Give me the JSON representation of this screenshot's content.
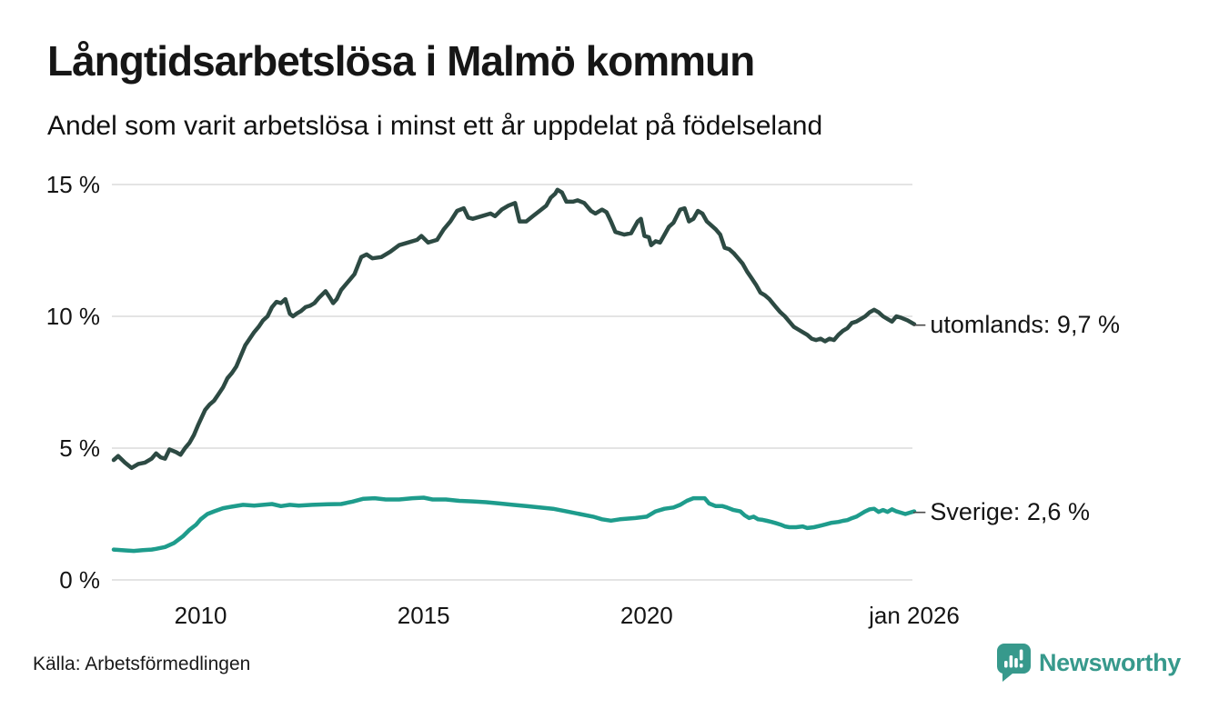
{
  "header": {
    "title": "Långtidsarbetslösa i Malmö kommun",
    "subtitle": "Andel som varit arbetslösa i minst ett år uppdelat på födelseland"
  },
  "footer": {
    "source": "Källa: Arbetsförmedlingen",
    "brand": "Newsworthy",
    "brand_icon": "bar-chart-speech-bubble-icon"
  },
  "colors": {
    "utomlands": "#2d4a43",
    "sverige": "#1e9c8c",
    "grid": "#dcdcdc",
    "text": "#1a1a1a",
    "brand": "#37998c",
    "end_dash": "#4a4a4a"
  },
  "chart_data": {
    "type": "line",
    "title": "Långtidsarbetslösa i Malmö kommun",
    "subtitle": "Andel som varit arbetslösa i minst ett år uppdelat på födelseland",
    "grid": true,
    "legend_position": "right-end-labels",
    "end_dash": "–",
    "x_axis": {
      "range": [
        2008.05,
        2026.0
      ],
      "ticks": [
        {
          "year": 2010,
          "label": "2010"
        },
        {
          "year": 2015,
          "label": "2015"
        },
        {
          "year": 2020,
          "label": "2020"
        },
        {
          "year": 2026,
          "label": "jan 2026"
        }
      ]
    },
    "y_axis": {
      "range": [
        0,
        15
      ],
      "unit": "%",
      "ticks": [
        {
          "value": 0,
          "label": "0 %"
        },
        {
          "value": 5,
          "label": "5 %"
        },
        {
          "value": 10,
          "label": "10 %"
        },
        {
          "value": 15,
          "label": "15 %"
        }
      ]
    },
    "series": [
      {
        "name": "utomlands",
        "label": "utomlands: 9,7 %",
        "last_value": 9.7,
        "color": "#2d4a43",
        "points": [
          [
            2008.05,
            4.55
          ],
          [
            2008.15,
            4.7
          ],
          [
            2008.3,
            4.45
          ],
          [
            2008.45,
            4.25
          ],
          [
            2008.6,
            4.4
          ],
          [
            2008.75,
            4.45
          ],
          [
            2008.9,
            4.6
          ],
          [
            2009.0,
            4.8
          ],
          [
            2009.1,
            4.65
          ],
          [
            2009.2,
            4.6
          ],
          [
            2009.3,
            4.95
          ],
          [
            2009.45,
            4.85
          ],
          [
            2009.55,
            4.75
          ],
          [
            2009.65,
            5.0
          ],
          [
            2009.75,
            5.2
          ],
          [
            2009.85,
            5.5
          ],
          [
            2009.95,
            5.9
          ],
          [
            2010.1,
            6.45
          ],
          [
            2010.2,
            6.65
          ],
          [
            2010.3,
            6.8
          ],
          [
            2010.4,
            7.05
          ],
          [
            2010.5,
            7.3
          ],
          [
            2010.6,
            7.65
          ],
          [
            2010.7,
            7.85
          ],
          [
            2010.8,
            8.1
          ],
          [
            2010.9,
            8.5
          ],
          [
            2011.0,
            8.9
          ],
          [
            2011.1,
            9.15
          ],
          [
            2011.2,
            9.4
          ],
          [
            2011.3,
            9.6
          ],
          [
            2011.4,
            9.85
          ],
          [
            2011.5,
            10.0
          ],
          [
            2011.6,
            10.35
          ],
          [
            2011.7,
            10.55
          ],
          [
            2011.8,
            10.5
          ],
          [
            2011.9,
            10.65
          ],
          [
            2012.0,
            10.1
          ],
          [
            2012.07,
            10.0
          ],
          [
            2012.15,
            10.1
          ],
          [
            2012.25,
            10.2
          ],
          [
            2012.35,
            10.35
          ],
          [
            2012.45,
            10.4
          ],
          [
            2012.55,
            10.5
          ],
          [
            2012.65,
            10.7
          ],
          [
            2012.8,
            10.95
          ],
          [
            2012.9,
            10.7
          ],
          [
            2012.97,
            10.5
          ],
          [
            2013.05,
            10.65
          ],
          [
            2013.15,
            11.0
          ],
          [
            2013.25,
            11.2
          ],
          [
            2013.35,
            11.4
          ],
          [
            2013.45,
            11.6
          ],
          [
            2013.6,
            12.25
          ],
          [
            2013.72,
            12.35
          ],
          [
            2013.85,
            12.2
          ],
          [
            2014.05,
            12.25
          ],
          [
            2014.25,
            12.45
          ],
          [
            2014.45,
            12.7
          ],
          [
            2014.65,
            12.8
          ],
          [
            2014.85,
            12.9
          ],
          [
            2014.95,
            13.05
          ],
          [
            2015.1,
            12.8
          ],
          [
            2015.3,
            12.9
          ],
          [
            2015.45,
            13.3
          ],
          [
            2015.6,
            13.6
          ],
          [
            2015.75,
            14.0
          ],
          [
            2015.9,
            14.1
          ],
          [
            2016.0,
            13.75
          ],
          [
            2016.1,
            13.7
          ],
          [
            2016.3,
            13.8
          ],
          [
            2016.5,
            13.9
          ],
          [
            2016.6,
            13.8
          ],
          [
            2016.75,
            14.05
          ],
          [
            2016.9,
            14.2
          ],
          [
            2017.05,
            14.3
          ],
          [
            2017.15,
            13.6
          ],
          [
            2017.3,
            13.6
          ],
          [
            2017.45,
            13.8
          ],
          [
            2017.6,
            14.0
          ],
          [
            2017.75,
            14.2
          ],
          [
            2017.85,
            14.5
          ],
          [
            2017.95,
            14.65
          ],
          [
            2018.0,
            14.8
          ],
          [
            2018.1,
            14.7
          ],
          [
            2018.2,
            14.35
          ],
          [
            2018.35,
            14.35
          ],
          [
            2018.45,
            14.4
          ],
          [
            2018.6,
            14.3
          ],
          [
            2018.75,
            14.0
          ],
          [
            2018.85,
            13.9
          ],
          [
            2019.0,
            14.05
          ],
          [
            2019.1,
            13.95
          ],
          [
            2019.2,
            13.6
          ],
          [
            2019.3,
            13.2
          ],
          [
            2019.5,
            13.1
          ],
          [
            2019.65,
            13.15
          ],
          [
            2019.8,
            13.6
          ],
          [
            2019.87,
            13.7
          ],
          [
            2019.95,
            13.05
          ],
          [
            2020.05,
            13.0
          ],
          [
            2020.1,
            12.7
          ],
          [
            2020.2,
            12.85
          ],
          [
            2020.3,
            12.8
          ],
          [
            2020.4,
            13.1
          ],
          [
            2020.5,
            13.4
          ],
          [
            2020.6,
            13.55
          ],
          [
            2020.75,
            14.05
          ],
          [
            2020.85,
            14.1
          ],
          [
            2020.95,
            13.6
          ],
          [
            2021.05,
            13.7
          ],
          [
            2021.15,
            14.0
          ],
          [
            2021.25,
            13.9
          ],
          [
            2021.35,
            13.6
          ],
          [
            2021.45,
            13.45
          ],
          [
            2021.55,
            13.3
          ],
          [
            2021.65,
            13.1
          ],
          [
            2021.75,
            12.6
          ],
          [
            2021.85,
            12.55
          ],
          [
            2021.95,
            12.4
          ],
          [
            2022.05,
            12.2
          ],
          [
            2022.15,
            12.0
          ],
          [
            2022.25,
            11.7
          ],
          [
            2022.35,
            11.45
          ],
          [
            2022.45,
            11.2
          ],
          [
            2022.55,
            10.9
          ],
          [
            2022.65,
            10.8
          ],
          [
            2022.75,
            10.65
          ],
          [
            2022.9,
            10.35
          ],
          [
            2023.0,
            10.15
          ],
          [
            2023.1,
            10.0
          ],
          [
            2023.2,
            9.8
          ],
          [
            2023.3,
            9.6
          ],
          [
            2023.4,
            9.5
          ],
          [
            2023.5,
            9.4
          ],
          [
            2023.6,
            9.3
          ],
          [
            2023.7,
            9.15
          ],
          [
            2023.8,
            9.1
          ],
          [
            2023.9,
            9.15
          ],
          [
            2024.0,
            9.05
          ],
          [
            2024.1,
            9.15
          ],
          [
            2024.2,
            9.1
          ],
          [
            2024.3,
            9.3
          ],
          [
            2024.4,
            9.45
          ],
          [
            2024.5,
            9.55
          ],
          [
            2024.6,
            9.75
          ],
          [
            2024.7,
            9.8
          ],
          [
            2024.8,
            9.9
          ],
          [
            2024.9,
            10.0
          ],
          [
            2025.0,
            10.15
          ],
          [
            2025.1,
            10.25
          ],
          [
            2025.2,
            10.15
          ],
          [
            2025.3,
            10.0
          ],
          [
            2025.4,
            9.9
          ],
          [
            2025.5,
            9.8
          ],
          [
            2025.6,
            10.0
          ],
          [
            2025.7,
            9.95
          ],
          [
            2025.85,
            9.85
          ],
          [
            2026.0,
            9.7
          ]
        ]
      },
      {
        "name": "sverige",
        "label": "Sverige: 2,6 %",
        "last_value": 2.6,
        "color": "#1e9c8c",
        "points": [
          [
            2008.05,
            1.15
          ],
          [
            2008.3,
            1.12
          ],
          [
            2008.5,
            1.1
          ],
          [
            2008.7,
            1.13
          ],
          [
            2008.9,
            1.15
          ],
          [
            2009.0,
            1.18
          ],
          [
            2009.2,
            1.25
          ],
          [
            2009.4,
            1.4
          ],
          [
            2009.6,
            1.65
          ],
          [
            2009.75,
            1.9
          ],
          [
            2009.9,
            2.1
          ],
          [
            2010.0,
            2.3
          ],
          [
            2010.15,
            2.5
          ],
          [
            2010.3,
            2.6
          ],
          [
            2010.5,
            2.72
          ],
          [
            2010.7,
            2.78
          ],
          [
            2010.95,
            2.85
          ],
          [
            2011.2,
            2.82
          ],
          [
            2011.4,
            2.85
          ],
          [
            2011.6,
            2.88
          ],
          [
            2011.8,
            2.8
          ],
          [
            2012.0,
            2.85
          ],
          [
            2012.2,
            2.82
          ],
          [
            2012.5,
            2.85
          ],
          [
            2012.85,
            2.87
          ],
          [
            2013.15,
            2.88
          ],
          [
            2013.4,
            2.97
          ],
          [
            2013.65,
            3.08
          ],
          [
            2013.9,
            3.1
          ],
          [
            2014.15,
            3.05
          ],
          [
            2014.45,
            3.05
          ],
          [
            2014.75,
            3.1
          ],
          [
            2015.0,
            3.12
          ],
          [
            2015.2,
            3.05
          ],
          [
            2015.5,
            3.05
          ],
          [
            2015.8,
            3.0
          ],
          [
            2016.1,
            2.98
          ],
          [
            2016.4,
            2.95
          ],
          [
            2016.7,
            2.9
          ],
          [
            2017.0,
            2.85
          ],
          [
            2017.3,
            2.8
          ],
          [
            2017.6,
            2.75
          ],
          [
            2017.9,
            2.7
          ],
          [
            2018.2,
            2.6
          ],
          [
            2018.5,
            2.5
          ],
          [
            2018.8,
            2.4
          ],
          [
            2019.0,
            2.3
          ],
          [
            2019.2,
            2.25
          ],
          [
            2019.4,
            2.3
          ],
          [
            2019.75,
            2.35
          ],
          [
            2020.0,
            2.4
          ],
          [
            2020.2,
            2.6
          ],
          [
            2020.4,
            2.7
          ],
          [
            2020.6,
            2.75
          ],
          [
            2020.75,
            2.85
          ],
          [
            2020.9,
            3.0
          ],
          [
            2021.05,
            3.1
          ],
          [
            2021.3,
            3.1
          ],
          [
            2021.4,
            2.9
          ],
          [
            2021.55,
            2.8
          ],
          [
            2021.7,
            2.8
          ],
          [
            2021.8,
            2.75
          ],
          [
            2021.95,
            2.65
          ],
          [
            2022.1,
            2.6
          ],
          [
            2022.2,
            2.45
          ],
          [
            2022.3,
            2.35
          ],
          [
            2022.4,
            2.4
          ],
          [
            2022.5,
            2.3
          ],
          [
            2022.6,
            2.28
          ],
          [
            2022.7,
            2.24
          ],
          [
            2022.8,
            2.2
          ],
          [
            2022.9,
            2.15
          ],
          [
            2023.0,
            2.1
          ],
          [
            2023.1,
            2.03
          ],
          [
            2023.2,
            2.0
          ],
          [
            2023.35,
            2.0
          ],
          [
            2023.5,
            2.03
          ],
          [
            2023.6,
            1.97
          ],
          [
            2023.75,
            2.0
          ],
          [
            2023.9,
            2.06
          ],
          [
            2024.0,
            2.1
          ],
          [
            2024.15,
            2.17
          ],
          [
            2024.3,
            2.2
          ],
          [
            2024.4,
            2.24
          ],
          [
            2024.5,
            2.27
          ],
          [
            2024.6,
            2.34
          ],
          [
            2024.7,
            2.4
          ],
          [
            2024.8,
            2.5
          ],
          [
            2024.9,
            2.6
          ],
          [
            2025.0,
            2.68
          ],
          [
            2025.1,
            2.7
          ],
          [
            2025.2,
            2.58
          ],
          [
            2025.3,
            2.65
          ],
          [
            2025.4,
            2.58
          ],
          [
            2025.5,
            2.68
          ],
          [
            2025.6,
            2.6
          ],
          [
            2025.7,
            2.55
          ],
          [
            2025.8,
            2.5
          ],
          [
            2025.9,
            2.55
          ],
          [
            2026.0,
            2.6
          ]
        ]
      }
    ]
  }
}
